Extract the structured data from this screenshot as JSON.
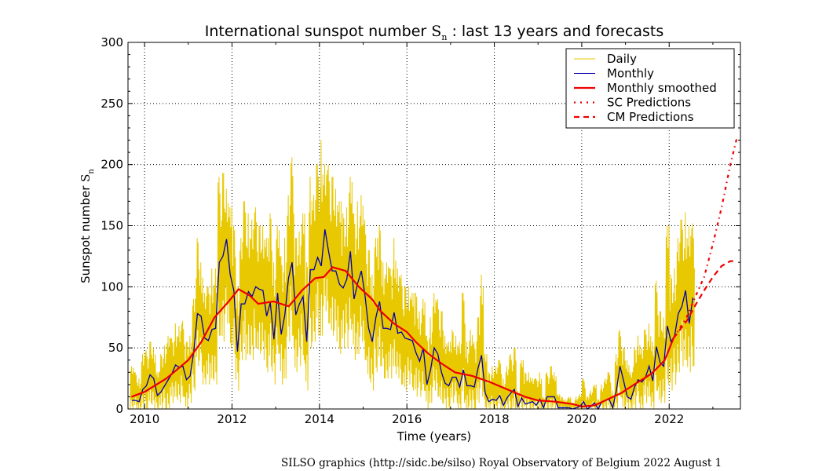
{
  "chart_data": {
    "type": "line",
    "title": {
      "prefix": "International sunspot number ",
      "symbol": "S",
      "subscript": "n",
      "suffix": " : last 13 years and forecasts"
    },
    "xlabel": "Time (years)",
    "ylabel": {
      "text": "Sunspot number ",
      "symbol": "S",
      "subscript": "n"
    },
    "xlim": [
      2009.62,
      2023.63
    ],
    "ylim": [
      0,
      300
    ],
    "xticks": [
      "2010",
      "2012",
      "2014",
      "2016",
      "2018",
      "2020",
      "2022"
    ],
    "yticks": [
      "0",
      "50",
      "100",
      "150",
      "200",
      "250",
      "300"
    ],
    "grid": true,
    "legend_position": "top-right",
    "series": [
      {
        "name": "Daily",
        "color": "#e8c800",
        "start_month": "2009-09",
        "monthly_daily_max": [
          35,
          30,
          25,
          45,
          48,
          55,
          50,
          30,
          45,
          52,
          60,
          58,
          70,
          68,
          72,
          55,
          60,
          90,
          140,
          120,
          95,
          100,
          115,
          115,
          190,
          193,
          180,
          165,
          150,
          100,
          140,
          170,
          160,
          155,
          165,
          150,
          150,
          140,
          160,
          120,
          150,
          125,
          140,
          175,
          206,
          140,
          145,
          160,
          120,
          190,
          175,
          200,
          220,
          200,
          200,
          190,
          180,
          170,
          160,
          165,
          190,
          160,
          170,
          175,
          155,
          130,
          110,
          140,
          150,
          120,
          120,
          115,
          140,
          115,
          110,
          100,
          100,
          95,
          95,
          80,
          90,
          60,
          75,
          95,
          90,
          80,
          60,
          55,
          65,
          60,
          55,
          95,
          55,
          65,
          55,
          75,
          110,
          45,
          30,
          35,
          35,
          40,
          25,
          35,
          45,
          50,
          15,
          40,
          30,
          30,
          25,
          25,
          30,
          10,
          30,
          35,
          30,
          12,
          10,
          8,
          10,
          5,
          10,
          12,
          25,
          10,
          15,
          20,
          8,
          20,
          25,
          30,
          15,
          45,
          65,
          50,
          40,
          30,
          50,
          60,
          50,
          65,
          70,
          55,
          105,
          80,
          75,
          150,
          110,
          115,
          140,
          155,
          161,
          150,
          152
        ],
        "monthly_daily_min": [
          0,
          0,
          0,
          0,
          0,
          5,
          0,
          0,
          0,
          0,
          0,
          5,
          10,
          5,
          10,
          0,
          5,
          15,
          35,
          30,
          20,
          20,
          25,
          20,
          60,
          55,
          70,
          50,
          45,
          15,
          40,
          40,
          45,
          40,
          50,
          45,
          40,
          30,
          35,
          20,
          45,
          20,
          25,
          55,
          60,
          30,
          35,
          40,
          15,
          50,
          55,
          60,
          60,
          80,
          70,
          60,
          55,
          45,
          50,
          50,
          65,
          40,
          45,
          55,
          40,
          25,
          15,
          30,
          35,
          25,
          25,
          25,
          35,
          25,
          20,
          15,
          20,
          15,
          10,
          10,
          15,
          0,
          5,
          15,
          10,
          5,
          0,
          0,
          5,
          5,
          0,
          5,
          0,
          0,
          0,
          5,
          10,
          0,
          0,
          0,
          0,
          0,
          0,
          0,
          0,
          0,
          0,
          0,
          0,
          0,
          0,
          0,
          0,
          0,
          0,
          0,
          0,
          0,
          0,
          0,
          0,
          0,
          0,
          0,
          0,
          0,
          0,
          0,
          0,
          0,
          0,
          0,
          0,
          0,
          10,
          0,
          0,
          0,
          0,
          5,
          0,
          5,
          10,
          0,
          15,
          5,
          5,
          20,
          15,
          20,
          30,
          35,
          40,
          30,
          35
        ]
      },
      {
        "name": "Monthly",
        "color": "#0000aa",
        "start_month": "2009-09",
        "values": [
          7,
          7,
          6,
          16,
          19,
          28,
          25,
          11,
          14,
          19,
          24,
          29,
          36,
          34,
          35,
          24,
          27,
          47,
          78,
          76,
          58,
          56,
          65,
          66,
          120,
          125,
          139,
          110,
          97,
          47,
          86,
          86,
          96,
          92,
          100,
          98,
          97,
          76,
          87,
          57,
          95,
          61,
          77,
          107,
          120,
          77,
          86,
          92,
          55,
          114,
          114,
          124,
          117,
          147,
          129,
          113,
          113,
          102,
          99,
          106,
          129,
          90,
          103,
          113,
          93,
          66,
          55,
          75,
          88,
          66,
          66,
          65,
          79,
          62,
          63,
          58,
          57,
          56,
          46,
          39,
          50,
          20,
          32,
          50,
          45,
          30,
          21,
          19,
          26,
          26,
          18,
          32,
          19,
          19,
          18,
          33,
          44,
          13,
          6,
          8,
          7,
          11,
          3,
          9,
          13,
          16,
          2,
          9,
          4,
          5,
          6,
          3,
          8,
          1,
          10,
          10,
          10,
          1,
          1,
          1,
          1,
          0,
          1,
          2,
          6,
          0,
          2,
          5,
          0,
          6,
          7,
          8,
          1,
          15,
          35,
          23,
          10,
          8,
          18,
          24,
          22,
          26,
          35,
          23,
          51,
          38,
          35,
          68,
          55,
          60,
          78,
          84,
          97,
          70,
          91
        ]
      },
      {
        "name": "Monthly smoothed",
        "color": "#ee0000",
        "x": [
          2009.7,
          2010.0,
          2010.5,
          2011.0,
          2011.3,
          2011.6,
          2011.9,
          2012.15,
          2012.4,
          2012.6,
          2012.95,
          2013.3,
          2013.6,
          2013.9,
          2014.1,
          2014.3,
          2014.6,
          2014.9,
          2015.2,
          2015.4,
          2015.7,
          2016.0,
          2016.2,
          2016.5,
          2016.8,
          2017.1,
          2017.5,
          2017.9,
          2018.3,
          2018.7,
          2019.0,
          2019.4,
          2019.8,
          2020.0,
          2020.3,
          2020.6,
          2020.9,
          2021.2,
          2021.6,
          2021.9,
          2022.1
        ],
        "y": [
          10,
          14,
          25,
          40,
          55,
          75,
          87,
          98,
          93,
          86,
          88,
          84,
          97,
          107,
          108,
          116,
          113,
          100,
          90,
          80,
          70,
          63,
          55,
          45,
          37,
          30,
          27,
          22,
          16,
          10,
          7,
          6,
          4,
          2,
          3,
          8,
          13,
          20,
          29,
          40,
          58
        ]
      },
      {
        "name": "SC Predictions",
        "color": "#ee0000",
        "dash": "dot-dash",
        "x": [
          2022.1,
          2022.4,
          2022.6,
          2022.8,
          2023.0,
          2023.2,
          2023.4,
          2023.55
        ],
        "y": [
          58,
          75,
          92,
          108,
          135,
          165,
          200,
          222
        ]
      },
      {
        "name": "CM Predictions",
        "color": "#ee0000",
        "dash": "dashed",
        "x": [
          2022.1,
          2022.4,
          2022.6,
          2022.8,
          2023.0,
          2023.2,
          2023.4,
          2023.55
        ],
        "y": [
          58,
          72,
          85,
          97,
          108,
          117,
          121,
          121
        ]
      }
    ],
    "footer": "SILSO graphics (http://sidc.be/silso)  Royal Observatory of Belgium  2022 August 1"
  }
}
